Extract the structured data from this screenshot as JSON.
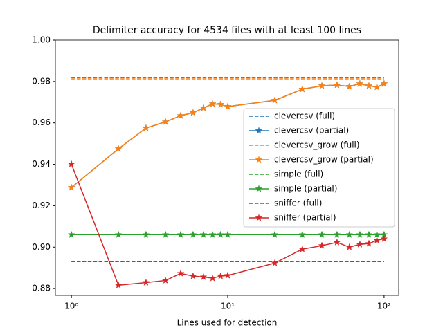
{
  "chart_data": {
    "type": "line",
    "title": "Delimiter accuracy for 4534 files with at least 100 lines",
    "xlabel": "Lines used for detection",
    "x": [
      1,
      2,
      3,
      4,
      5,
      6,
      7,
      8,
      9,
      10,
      20,
      30,
      40,
      50,
      60,
      70,
      80,
      90,
      100
    ],
    "xscale": "log",
    "xlim": [
      0.79,
      124
    ],
    "xticks": [
      {
        "value": 1,
        "label": "10⁰"
      },
      {
        "value": 10,
        "label": "10¹"
      },
      {
        "value": 100,
        "label": "10²"
      }
    ],
    "ylim": [
      0.8767,
      1.0
    ],
    "yticks": [
      {
        "value": 0.88,
        "label": "0.88"
      },
      {
        "value": 0.9,
        "label": "0.90"
      },
      {
        "value": 0.92,
        "label": "0.92"
      },
      {
        "value": 0.94,
        "label": "0.94"
      },
      {
        "value": 0.96,
        "label": "0.96"
      },
      {
        "value": 0.98,
        "label": "0.98"
      },
      {
        "value": 1.0,
        "label": "1.00"
      }
    ],
    "legend": "center right",
    "series": [
      {
        "name": "clevercsv (full)",
        "color": "#1f77b4",
        "linestyle": "dashed",
        "marker": null,
        "values": [
          0.9819,
          0.9819,
          0.9819,
          0.9819,
          0.9819,
          0.9819,
          0.9819,
          0.9819,
          0.9819,
          0.9819,
          0.9819,
          0.9819,
          0.9819,
          0.9819,
          0.9819,
          0.9819,
          0.9819,
          0.9819,
          0.9819
        ]
      },
      {
        "name": "clevercsv (partial)",
        "color": "#1f77b4",
        "linestyle": "solid",
        "marker": "star",
        "values": [
          0.9288,
          0.9475,
          0.9575,
          0.9605,
          0.9635,
          0.9649,
          0.9672,
          0.9692,
          0.9689,
          0.9679,
          0.9709,
          0.9763,
          0.9779,
          0.9783,
          0.9776,
          0.9789,
          0.9779,
          0.9773,
          0.9789
        ]
      },
      {
        "name": "clevercsv_grow (full)",
        "color": "#ff7f0e",
        "linestyle": "dashed",
        "marker": null,
        "values": [
          0.9813,
          0.9813,
          0.9813,
          0.9813,
          0.9813,
          0.9813,
          0.9813,
          0.9813,
          0.9813,
          0.9813,
          0.9813,
          0.9813,
          0.9813,
          0.9813,
          0.9813,
          0.9813,
          0.9813,
          0.9813,
          0.9813
        ]
      },
      {
        "name": "clevercsv_grow (partial)",
        "color": "#ff7f0e",
        "linestyle": "solid",
        "marker": "star",
        "values": [
          0.9288,
          0.9475,
          0.9575,
          0.9605,
          0.9635,
          0.9649,
          0.9672,
          0.9692,
          0.9689,
          0.9679,
          0.9709,
          0.9763,
          0.9779,
          0.9783,
          0.9776,
          0.9789,
          0.9779,
          0.9773,
          0.9789
        ]
      },
      {
        "name": "simple (full)",
        "color": "#2ca02c",
        "linestyle": "dashed",
        "marker": null,
        "values": [
          0.906,
          0.906,
          0.906,
          0.906,
          0.906,
          0.906,
          0.906,
          0.906,
          0.906,
          0.906,
          0.906,
          0.906,
          0.906,
          0.906,
          0.906,
          0.906,
          0.906,
          0.906,
          0.906
        ]
      },
      {
        "name": "simple (partial)",
        "color": "#2ca02c",
        "linestyle": "solid",
        "marker": "star",
        "values": [
          0.906,
          0.906,
          0.906,
          0.906,
          0.906,
          0.906,
          0.906,
          0.906,
          0.906,
          0.906,
          0.906,
          0.906,
          0.906,
          0.906,
          0.906,
          0.906,
          0.906,
          0.906,
          0.906
        ]
      },
      {
        "name": "sniffer (full)",
        "color": "#d62728",
        "linestyle": "dashed",
        "marker": null,
        "values": [
          0.893,
          0.893,
          0.893,
          0.893,
          0.893,
          0.893,
          0.893,
          0.893,
          0.893,
          0.893,
          0.893,
          0.893,
          0.893,
          0.893,
          0.893,
          0.893,
          0.893,
          0.893,
          0.893
        ]
      },
      {
        "name": "sniffer (partial)",
        "color": "#d62728",
        "linestyle": "solid",
        "marker": "star",
        "values": [
          0.9401,
          0.8816,
          0.8829,
          0.8839,
          0.8873,
          0.886,
          0.8856,
          0.885,
          0.886,
          0.8863,
          0.8923,
          0.899,
          0.9007,
          0.9023,
          0.9,
          0.9013,
          0.9017,
          0.9033,
          0.904
        ]
      }
    ]
  }
}
